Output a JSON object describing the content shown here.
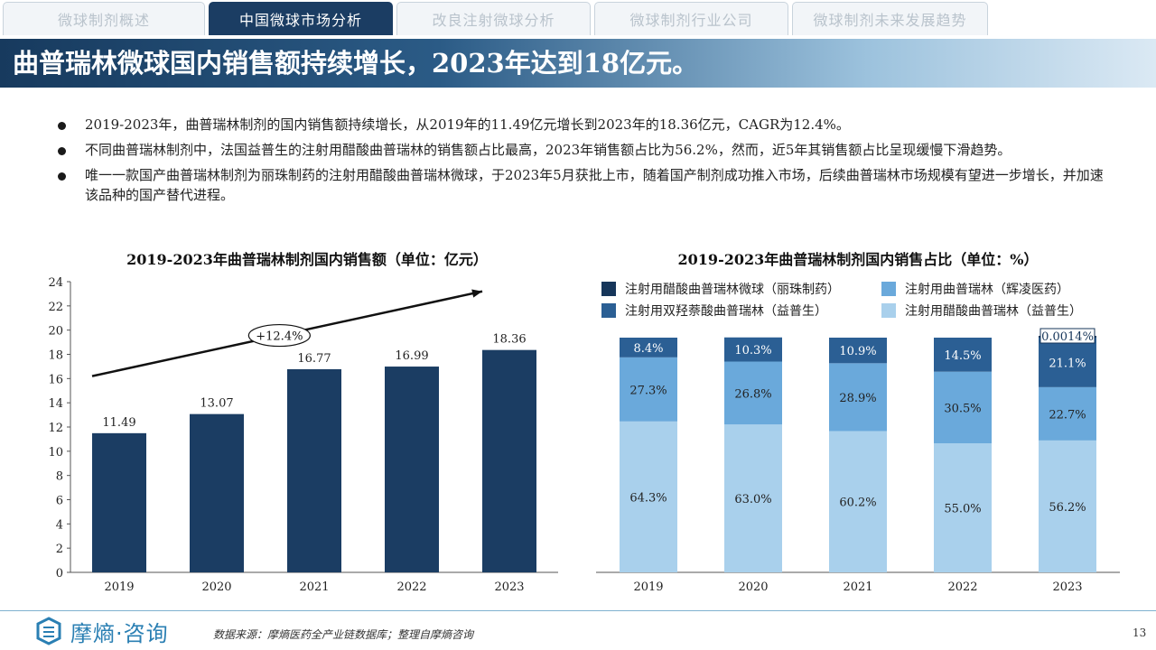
{
  "tabs": [
    {
      "label": "微球制剂概述",
      "active": false
    },
    {
      "label": "中国微球市场分析",
      "active": true
    },
    {
      "label": "改良注射微球分析",
      "active": false
    },
    {
      "label": "微球制剂行业公司",
      "active": false
    },
    {
      "label": "微球制剂未来发展趋势",
      "active": false
    }
  ],
  "title": "曲普瑞林微球国内销售额持续增长，2023年达到18亿元。",
  "bullets": [
    "2019-2023年，曲普瑞林制剂的国内销售额持续增长，从2019年的11.49亿元增长到2023年的18.36亿元，CAGR为12.4%。",
    "不同曲普瑞林制剂中，法国益普生的注射用醋酸曲普瑞林的销售额占比最高，2023年销售额占比为56.2%，然而，近5年其销售额占比呈现缓慢下滑趋势。",
    "唯一一款国产曲普瑞林制剂为丽珠制药的注射用醋酸曲普瑞林微球，于2023年5月获批上市，随着国产制剂成功推入市场，后续曲普瑞林市场规模有望进一步增长，并加速该品种的国产替代进程。"
  ],
  "chart_data": [
    {
      "type": "bar",
      "title": "2019-2023年曲普瑞林制剂国内销售额（单位：亿元）",
      "categories": [
        "2019",
        "2020",
        "2021",
        "2022",
        "2023"
      ],
      "values": [
        11.49,
        13.07,
        16.77,
        16.99,
        18.36
      ],
      "value_labels": [
        "11.49",
        "13.07",
        "16.77",
        "16.99",
        "18.36"
      ],
      "ylim": [
        0,
        24
      ],
      "yticks": [
        0,
        2,
        4,
        6,
        8,
        10,
        12,
        14,
        16,
        18,
        20,
        22,
        24
      ],
      "cagr_label": "+12.4%",
      "bar_color": "#1b3d63"
    },
    {
      "type": "bar",
      "stacked": true,
      "title": "2019-2023年曲普瑞林制剂国内销售占比（单位：%）",
      "categories": [
        "2019",
        "2020",
        "2021",
        "2022",
        "2023"
      ],
      "legend_position": "top",
      "series": [
        {
          "name": "注射用醋酸曲普瑞林（益普生）",
          "color": "#a9d0ec",
          "values": [
            64.3,
            63.0,
            60.2,
            55.0,
            56.2
          ],
          "labels": [
            "64.3%",
            "63.0%",
            "60.2%",
            "55.0%",
            "56.2%"
          ]
        },
        {
          "name": "注射用曲普瑞林（辉凌医药）",
          "color": "#6aa9db",
          "values": [
            27.3,
            26.8,
            28.9,
            30.5,
            22.7
          ],
          "labels": [
            "27.3%",
            "26.8%",
            "28.9%",
            "30.5%",
            "22.7%"
          ]
        },
        {
          "name": "注射用双羟萘酸曲普瑞林（益普生）",
          "color": "#2b5f94",
          "values": [
            8.4,
            10.3,
            10.9,
            14.5,
            21.1
          ],
          "labels": [
            "8.4%",
            "10.3%",
            "10.9%",
            "14.5%",
            "21.1%"
          ]
        },
        {
          "name": "注射用醋酸曲普瑞林微球（丽珠制药）",
          "color": "#16365a",
          "values": [
            0,
            0,
            0,
            0,
            0.0014
          ],
          "labels": [
            "",
            "",
            "",
            "",
            "0.0014%"
          ]
        }
      ],
      "legend_order": [
        3,
        1,
        2,
        0
      ]
    }
  ],
  "footer": {
    "logo_text": "摩熵·咨询",
    "source": "数据来源：摩熵医药全产业链数据库；整理自摩熵咨询",
    "page_number": "13"
  }
}
